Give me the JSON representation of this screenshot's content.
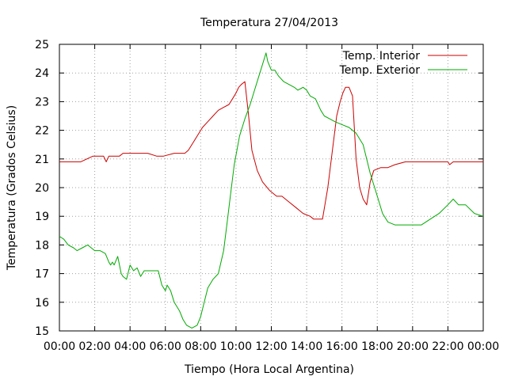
{
  "chart_data": {
    "type": "line",
    "title": "Temperatura 27/04/2013",
    "xlabel": "Tiempo (Hora Local Argentina)",
    "ylabel": "Temperatura (Grados Celsius)",
    "x_ticks": [
      "00:00",
      "02:00",
      "04:00",
      "06:00",
      "08:00",
      "10:00",
      "12:00",
      "14:00",
      "16:00",
      "18:00",
      "20:00",
      "22:00",
      "00:00"
    ],
    "y_ticks": [
      "15",
      "16",
      "17",
      "18",
      "19",
      "20",
      "21",
      "22",
      "23",
      "24",
      "25"
    ],
    "xlim": [
      0,
      24
    ],
    "ylim": [
      15,
      25
    ],
    "grid": true,
    "legend_position": "top-right",
    "series": [
      {
        "name": "Temp. Interior",
        "color": "#cc0000",
        "x": [
          0,
          1.2,
          1.9,
          2.5,
          2.65,
          2.8,
          3.4,
          3.6,
          3.8,
          4.4,
          5.0,
          5.5,
          5.9,
          6.5,
          6.9,
          7.1,
          7.3,
          7.6,
          7.9,
          8.1,
          8.4,
          8.7,
          9.0,
          9.3,
          9.6,
          9.8,
          10.0,
          10.15,
          10.3,
          10.5,
          10.7,
          10.9,
          11.2,
          11.5,
          11.9,
          12.3,
          12.6,
          13.0,
          13.4,
          13.8,
          14.2,
          14.4,
          14.6,
          14.9,
          15.2,
          15.5,
          15.7,
          15.9,
          16.05,
          16.2,
          16.4,
          16.6,
          16.8,
          17.0,
          17.2,
          17.4,
          17.6,
          17.8,
          18.2,
          18.6,
          19.0,
          19.6,
          20.2,
          21.0,
          21.7,
          22.0,
          22.1,
          22.3,
          23.0,
          24.0
        ],
        "y": [
          20.9,
          20.9,
          21.1,
          21.1,
          20.9,
          21.1,
          21.1,
          21.2,
          21.2,
          21.2,
          21.2,
          21.1,
          21.1,
          21.2,
          21.2,
          21.2,
          21.3,
          21.6,
          21.9,
          22.1,
          22.3,
          22.5,
          22.7,
          22.8,
          22.9,
          23.1,
          23.3,
          23.5,
          23.6,
          23.7,
          22.6,
          21.3,
          20.6,
          20.2,
          19.9,
          19.7,
          19.7,
          19.5,
          19.3,
          19.1,
          19.0,
          18.9,
          18.9,
          18.9,
          20.0,
          21.5,
          22.5,
          23.0,
          23.3,
          23.5,
          23.5,
          23.2,
          21.0,
          20.0,
          19.6,
          19.4,
          20.2,
          20.6,
          20.7,
          20.7,
          20.8,
          20.9,
          20.9,
          20.9,
          20.9,
          20.9,
          20.8,
          20.9,
          20.9,
          20.9
        ]
      },
      {
        "name": "Temp. Exterior",
        "color": "#00aa00",
        "x": [
          0,
          0.25,
          0.5,
          0.8,
          1.0,
          1.3,
          1.6,
          1.8,
          2.0,
          2.3,
          2.6,
          2.8,
          2.9,
          3.0,
          3.1,
          3.3,
          3.5,
          3.6,
          3.8,
          4.0,
          4.2,
          4.4,
          4.6,
          4.8,
          5.0,
          5.3,
          5.6,
          5.8,
          6.0,
          6.1,
          6.3,
          6.5,
          6.8,
          7.0,
          7.2,
          7.5,
          7.8,
          8.0,
          8.2,
          8.4,
          8.7,
          9.0,
          9.3,
          9.5,
          9.7,
          9.9,
          10.2,
          10.5,
          10.8,
          11.0,
          11.3,
          11.5,
          11.7,
          11.8,
          12.0,
          12.2,
          12.4,
          12.7,
          13.0,
          13.3,
          13.5,
          13.8,
          14.0,
          14.2,
          14.5,
          14.8,
          15.0,
          15.3,
          15.6,
          16.0,
          16.4,
          16.8,
          17.2,
          17.6,
          18.0,
          18.3,
          18.6,
          19.0,
          19.5,
          20.0,
          20.5,
          21.0,
          21.5,
          22.0,
          22.3,
          22.6,
          23.0,
          23.5,
          24.0
        ],
        "y": [
          18.3,
          18.2,
          18.0,
          17.9,
          17.8,
          17.9,
          18.0,
          17.9,
          17.8,
          17.8,
          17.7,
          17.4,
          17.3,
          17.4,
          17.3,
          17.6,
          17.0,
          16.9,
          16.8,
          17.3,
          17.1,
          17.2,
          16.9,
          17.1,
          17.1,
          17.1,
          17.1,
          16.6,
          16.4,
          16.6,
          16.4,
          16.0,
          15.7,
          15.4,
          15.2,
          15.1,
          15.2,
          15.5,
          16.0,
          16.5,
          16.8,
          17.0,
          17.8,
          18.8,
          19.8,
          20.8,
          21.8,
          22.4,
          22.9,
          23.3,
          23.9,
          24.3,
          24.7,
          24.4,
          24.1,
          24.1,
          23.9,
          23.7,
          23.6,
          23.5,
          23.4,
          23.5,
          23.4,
          23.2,
          23.1,
          22.7,
          22.5,
          22.4,
          22.3,
          22.2,
          22.1,
          21.9,
          21.5,
          20.5,
          19.7,
          19.1,
          18.8,
          18.7,
          18.7,
          18.7,
          18.7,
          18.9,
          19.1,
          19.4,
          19.6,
          19.4,
          19.4,
          19.1,
          19.0
        ]
      }
    ]
  }
}
